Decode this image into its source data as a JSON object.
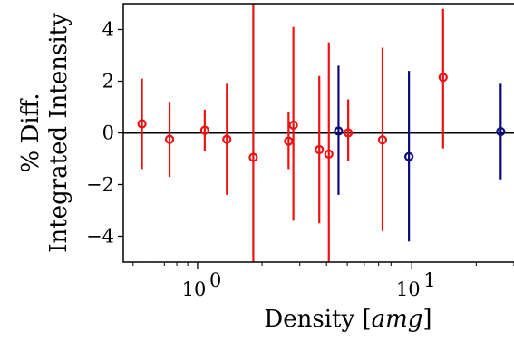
{
  "chart_data": {
    "type": "scatter",
    "title": "",
    "xlabel": "Density",
    "xlabel_unit": "amg",
    "ylabel_line1": "% Diff.",
    "ylabel_line2": "Integrated Intensity",
    "xscale": "log",
    "xlim": [
      0.45,
      30
    ],
    "ylim": [
      -5,
      5
    ],
    "x_ticks": [
      {
        "value": 1,
        "base": "10",
        "exp": "0"
      },
      {
        "value": 10,
        "base": "10",
        "exp": "1"
      }
    ],
    "y_ticks": [
      {
        "value": -4,
        "label": "−4"
      },
      {
        "value": -2,
        "label": "−2"
      },
      {
        "value": 0,
        "label": "0"
      },
      {
        "value": 2,
        "label": "2"
      },
      {
        "value": 4,
        "label": "4"
      }
    ],
    "reference_line": 0,
    "grid": false,
    "legend": "none",
    "series": [
      {
        "color": "#ee1111",
        "points": [
          {
            "x": 0.55,
            "y": 0.35,
            "lo": -1.4,
            "hi": 2.1
          },
          {
            "x": 0.74,
            "y": -0.25,
            "lo": -1.7,
            "hi": 1.2
          },
          {
            "x": 1.08,
            "y": 0.1,
            "lo": -0.7,
            "hi": 0.9
          },
          {
            "x": 1.37,
            "y": -0.25,
            "lo": -2.4,
            "hi": 1.9
          },
          {
            "x": 1.82,
            "y": -0.95,
            "lo": -5.0,
            "hi": 5.0
          },
          {
            "x": 2.66,
            "y": -0.32,
            "lo": -1.4,
            "hi": 0.8
          },
          {
            "x": 2.8,
            "y": 0.3,
            "lo": -3.4,
            "hi": 4.1
          },
          {
            "x": 3.7,
            "y": -0.65,
            "lo": -3.5,
            "hi": 2.2
          },
          {
            "x": 4.1,
            "y": -0.82,
            "lo": -5.0,
            "hi": 3.5
          },
          {
            "x": 5.05,
            "y": 0.0,
            "lo": -1.1,
            "hi": 1.3
          },
          {
            "x": 7.3,
            "y": -0.27,
            "lo": -3.8,
            "hi": 3.3
          },
          {
            "x": 14.0,
            "y": 2.15,
            "lo": -0.6,
            "hi": 4.8
          }
        ]
      },
      {
        "color": "#0a0a7a",
        "points": [
          {
            "x": 4.55,
            "y": 0.07,
            "lo": -2.4,
            "hi": 2.6
          },
          {
            "x": 9.7,
            "y": -0.92,
            "lo": -4.2,
            "hi": 2.4
          },
          {
            "x": 26.0,
            "y": 0.05,
            "lo": -1.8,
            "hi": 1.9
          }
        ]
      }
    ]
  }
}
